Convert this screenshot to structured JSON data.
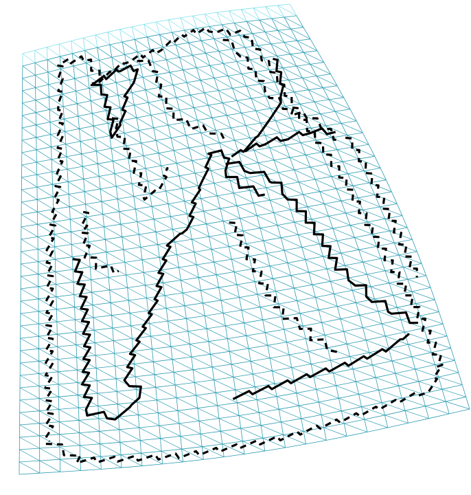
{
  "figure": {
    "kind": "triangulated-mesh-with-contours",
    "colors": {
      "background": "#ffffff",
      "mesh": "#2a9bb0",
      "mesh_top": "#7fe0ea",
      "contour": "#000000"
    },
    "mesh": {
      "rows": 34,
      "cols": 22
    }
  }
}
